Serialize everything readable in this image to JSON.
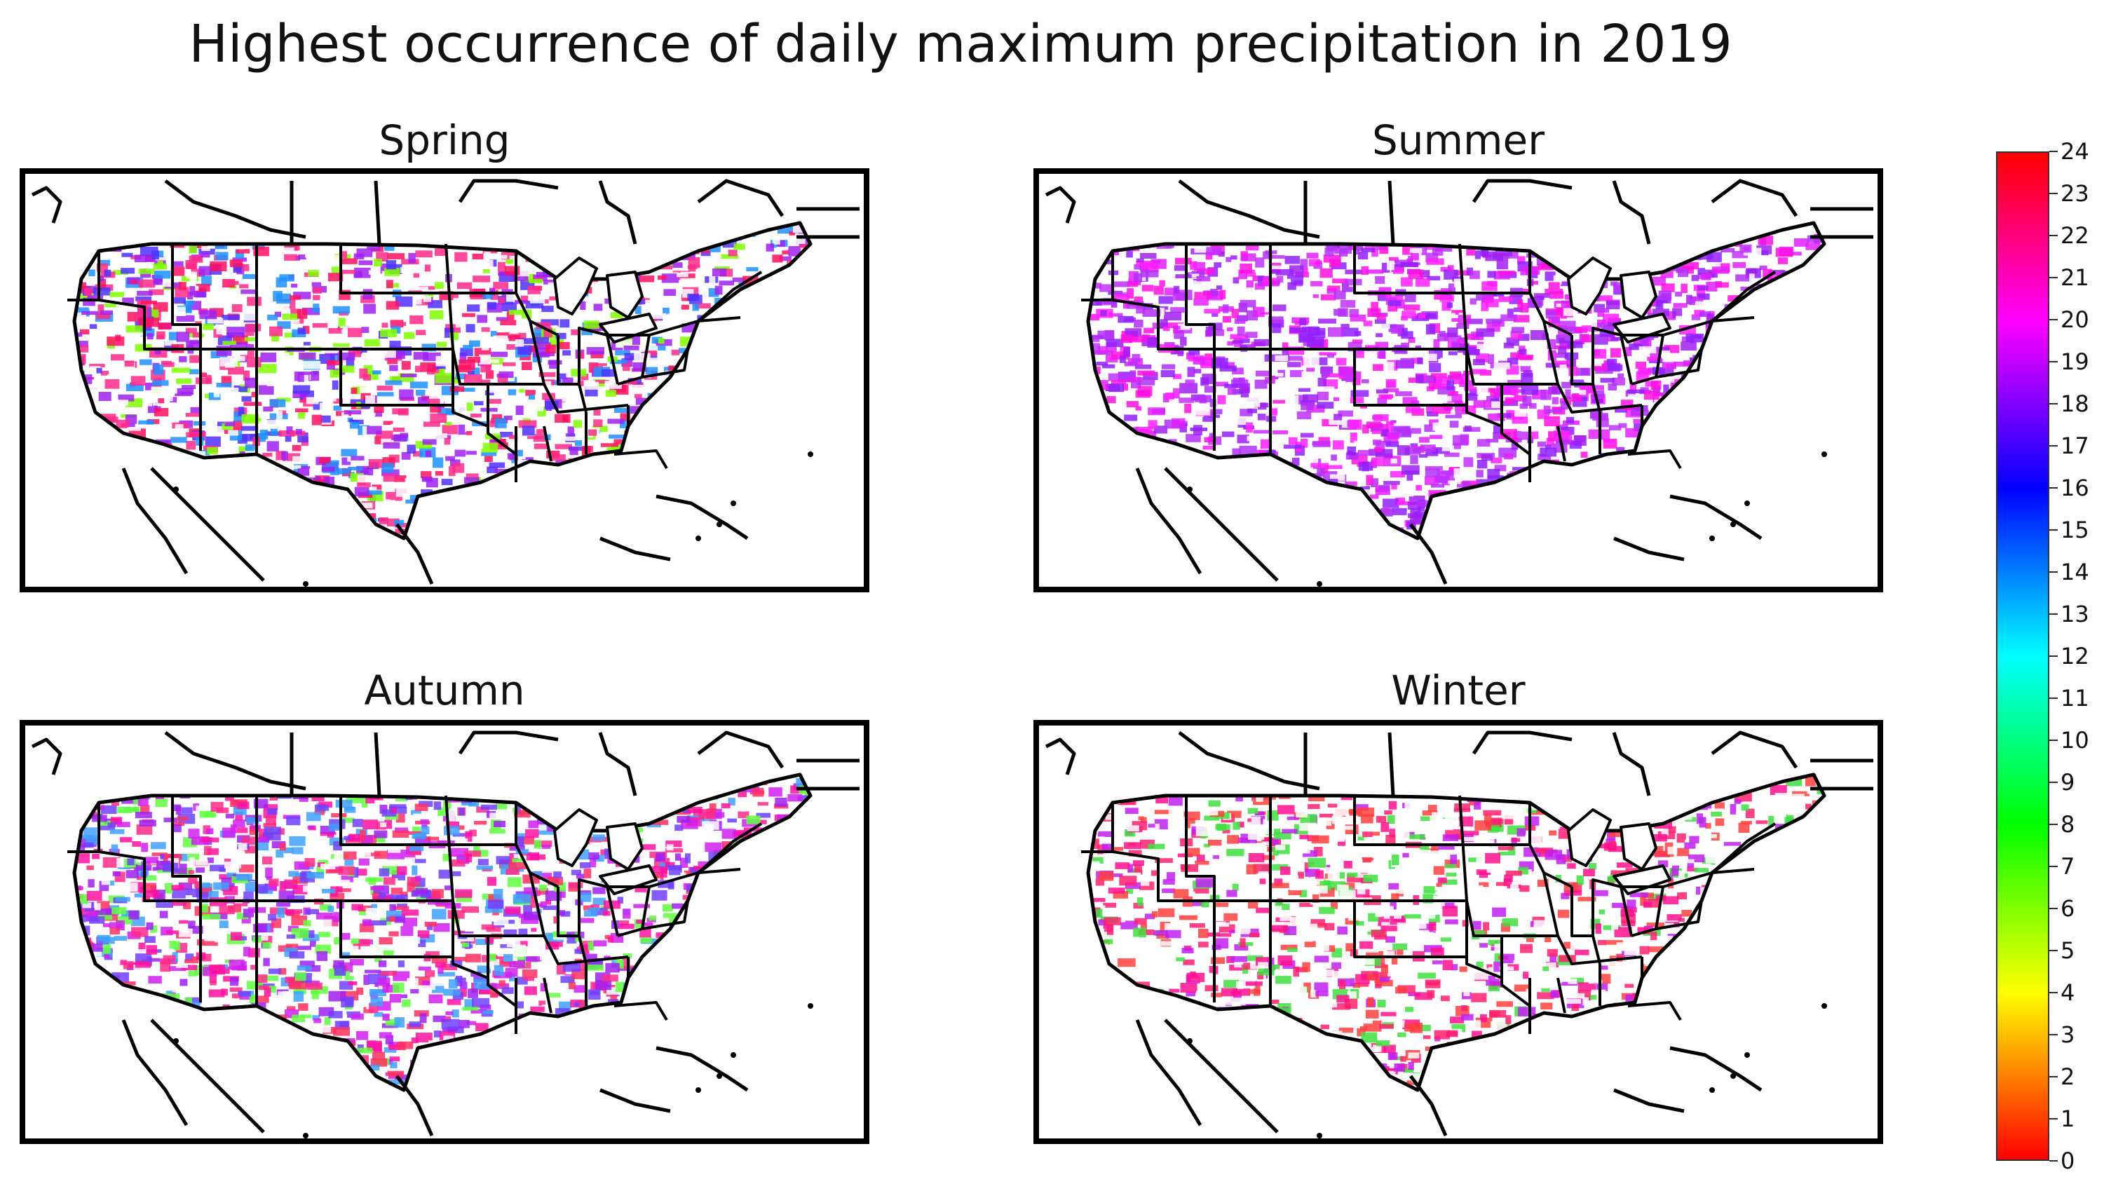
{
  "title": "Highest occurrence of daily maximum precipitation in 2019",
  "panels": [
    {
      "id": "spring",
      "title": "Spring",
      "palette": [
        "#ffffff",
        "#ffffff",
        "#ff2a8a",
        "#a020f0",
        "#ffffff",
        "#1e90ff",
        "#ff2a8a",
        "#a020f0",
        "#7fff00",
        "#ff1060",
        "#5030ff"
      ]
    },
    {
      "id": "summer",
      "title": "Summer",
      "palette": [
        "#a020f0",
        "#b030f8",
        "#ff10e0",
        "#ff20ff",
        "#9020ff",
        "#e020ff",
        "#ffffff",
        "#c030ff"
      ]
    },
    {
      "id": "autumn",
      "title": "Autumn",
      "palette": [
        "#ff2a8a",
        "#a020f0",
        "#ff10a0",
        "#7040ff",
        "#ffffff",
        "#ff3060",
        "#40a0ff",
        "#d020f0",
        "#60ff40"
      ]
    },
    {
      "id": "winter",
      "title": "Winter",
      "palette": [
        "#ffffff",
        "#ffffff",
        "#ffffff",
        "#ff2070",
        "#ff1090",
        "#c020f0",
        "#ffffff",
        "#40e040",
        "#ff4040"
      ]
    }
  ],
  "colorbar": {
    "min": 0,
    "max": 24,
    "ticks": [
      "0",
      "1",
      "2",
      "3",
      "4",
      "5",
      "6",
      "7",
      "8",
      "9",
      "10",
      "11",
      "12",
      "13",
      "14",
      "15",
      "16",
      "17",
      "18",
      "19",
      "20",
      "21",
      "22",
      "23",
      "24"
    ],
    "colors": [
      "#ff0000",
      "#ff8000",
      "#ffff00",
      "#80ff00",
      "#00ff00",
      "#00ff80",
      "#00ffff",
      "#0080ff",
      "#0000ff",
      "#8000ff",
      "#ff00ff",
      "#ff0080",
      "#ff0000"
    ]
  }
}
